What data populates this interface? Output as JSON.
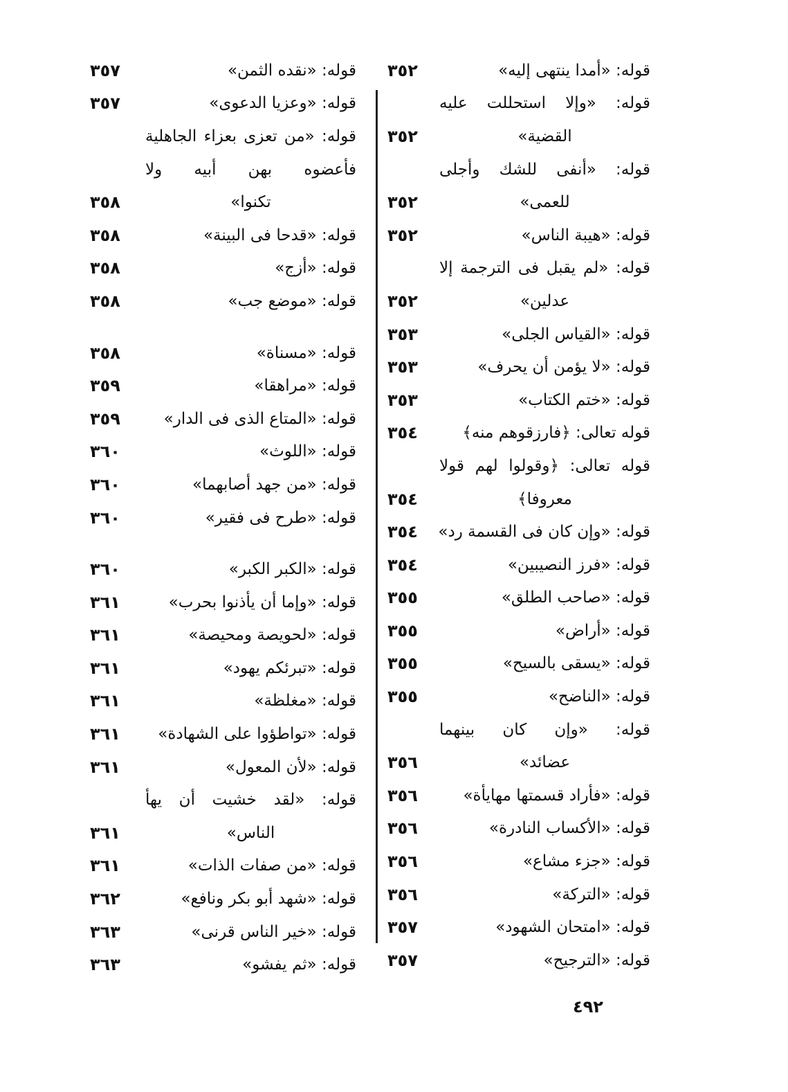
{
  "page_number": "٤٩٢",
  "columns": {
    "right": [
      {
        "lines": [
          "قوله: «أمدا ينتهى إليه»"
        ],
        "page": "٣٥٢"
      },
      {
        "lines": [
          "قوله: «وإلا استحللت عليه",
          "القضية»"
        ],
        "page": "٣٥٢"
      },
      {
        "lines": [
          "قوله: «أنفى للشك وأجلى",
          "للعمى»"
        ],
        "page": "٣٥٢"
      },
      {
        "lines": [
          "قوله: «هيبة الناس»"
        ],
        "page": "٣٥٢"
      },
      {
        "lines": [
          "قوله: «لم يقبل فى الترجمة إلا",
          "عدلين»"
        ],
        "page": "٣٥٢"
      },
      {
        "lines": [
          "قوله: «القياس الجلى»"
        ],
        "page": "٣٥٣"
      },
      {
        "lines": [
          "قوله: «لا يؤمن أن يحرف»"
        ],
        "page": "٣٥٣"
      },
      {
        "lines": [
          "قوله: «ختم الكتاب»"
        ],
        "page": "٣٥٣"
      },
      {
        "lines": [
          "قوله تعالى: ﴿فارزقوهم منه﴾"
        ],
        "page": "٣٥٤"
      },
      {
        "lines": [
          "قوله تعالى: ﴿وقولوا لهم قولا",
          "معروفا﴾"
        ],
        "page": "٣٥٤"
      },
      {
        "lines": [
          "قوله: «وإن كان فى القسمة رد»"
        ],
        "page": "٣٥٤"
      },
      {
        "lines": [
          "قوله: «فرز النصيبين»"
        ],
        "page": "٣٥٤"
      },
      {
        "lines": [
          "قوله: «صاحب الطلق»"
        ],
        "page": "٣٥٥"
      },
      {
        "lines": [
          "قوله: «أراض»"
        ],
        "page": "٣٥٥"
      },
      {
        "lines": [
          "قوله: «يسقى بالسيح»"
        ],
        "page": "٣٥٥"
      },
      {
        "lines": [
          "قوله: «الناضح»"
        ],
        "page": "٣٥٥"
      },
      {
        "lines": [
          "قوله: «وإن كان بينهما",
          "عضائد»"
        ],
        "page": "٣٥٦"
      },
      {
        "lines": [
          "قوله: «فأراد قسمتها مهايأة»"
        ],
        "page": "٣٥٦"
      },
      {
        "lines": [
          "قوله: «الأكساب النادرة»"
        ],
        "page": "٣٥٦"
      },
      {
        "lines": [
          "قوله: «جزء مشاع»"
        ],
        "page": "٣٥٦"
      },
      {
        "lines": [
          "قوله: «التركة»"
        ],
        "page": "٣٥٦"
      },
      {
        "lines": [
          "قوله: «امتحان الشهود»"
        ],
        "page": "٣٥٧"
      },
      {
        "lines": [
          "قوله: «الترجيح»"
        ],
        "page": "٣٥٧"
      }
    ],
    "left": [
      {
        "lines": [
          "قوله: «نقده الثمن»"
        ],
        "page": "٣٥٧"
      },
      {
        "lines": [
          "قوله: «وعزيا الدعوى»"
        ],
        "page": "٣٥٧"
      },
      {
        "lines": [
          "قوله: «من تعزى بعزاء الجاهلية",
          "فأعضوه بهن أبيه ولا",
          "تكنوا»"
        ],
        "page": "٣٥٨"
      },
      {
        "lines": [
          "قوله: «قدحا فى البينة»"
        ],
        "page": "٣٥٨"
      },
      {
        "lines": [
          "قوله: «أزج»"
        ],
        "page": "٣٥٨"
      },
      {
        "lines": [
          "قوله: «موضع جب»"
        ],
        "page": "٣٥٨"
      },
      {
        "lines": [
          "قوله: «مسناة»"
        ],
        "page": "٣٥٨"
      },
      {
        "lines": [
          "قوله: «مراهقا»"
        ],
        "page": "٣٥٩"
      },
      {
        "lines": [
          "قوله: «المتاع الذى فى الدار»"
        ],
        "page": "٣٥٩"
      },
      {
        "lines": [
          "قوله: «اللوث»"
        ],
        "page": "٣٦٠"
      },
      {
        "lines": [
          "قوله: «من جهد أصابهما»"
        ],
        "page": "٣٦٠"
      },
      {
        "lines": [
          "قوله: «طرح فى فقير»"
        ],
        "page": "٣٦٠"
      },
      {
        "lines": [
          "قوله: «الكبر الكبر»"
        ],
        "page": "٣٦٠"
      },
      {
        "lines": [
          "قوله: «وإما أن يأذنوا بحرب»"
        ],
        "page": "٣٦١"
      },
      {
        "lines": [
          "قوله: «لحويصة ومحيصة»"
        ],
        "page": "٣٦١"
      },
      {
        "lines": [
          "قوله: «تبرئكم يهود»"
        ],
        "page": "٣٦١"
      },
      {
        "lines": [
          "قوله: «مغلظة»"
        ],
        "page": "٣٦١"
      },
      {
        "lines": [
          "قوله: «تواطؤوا على الشهادة»"
        ],
        "page": "٣٦١"
      },
      {
        "lines": [
          "قوله: «لأن المعول»"
        ],
        "page": "٣٦١"
      },
      {
        "lines": [
          "قوله: «لقد خشيت أن يهأ",
          "الناس»"
        ],
        "page": "٣٦١"
      },
      {
        "lines": [
          "قوله: «من صفات الذات»"
        ],
        "page": "٣٦١"
      },
      {
        "lines": [
          "قوله: «شهد أبو بكر ونافع»"
        ],
        "page": "٣٦٢"
      },
      {
        "lines": [
          "قوله: «خير الناس قرنى»"
        ],
        "page": "٣٦٣"
      },
      {
        "lines": [
          "قوله: «ثم يفشو»"
        ],
        "page": "٣٦٣"
      }
    ]
  }
}
